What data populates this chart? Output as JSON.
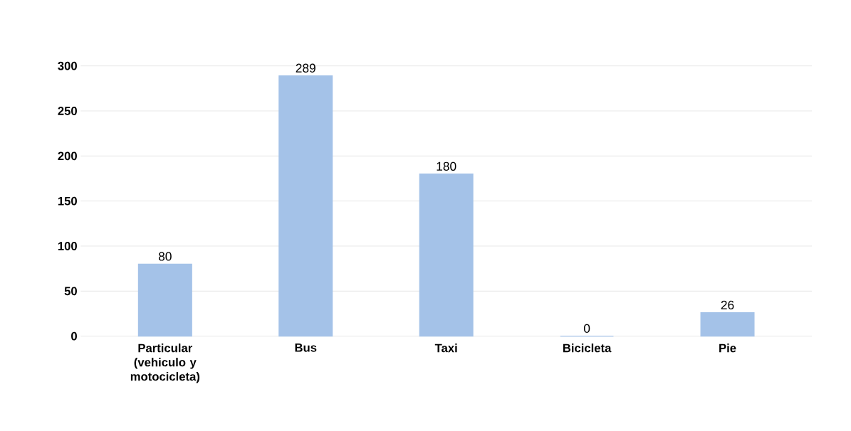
{
  "chart_data": {
    "type": "bar",
    "categories": [
      "Particular (vehiculo y motocicleta)",
      "Bus",
      "Taxi",
      "Bicicleta",
      "Pie"
    ],
    "values": [
      80,
      289,
      180,
      0,
      26
    ],
    "color": "#a4c2e8",
    "ylim": [
      0,
      300
    ],
    "yticks": [
      0,
      50,
      100,
      150,
      200,
      250,
      300
    ],
    "grid": "y",
    "data_labels": true
  }
}
